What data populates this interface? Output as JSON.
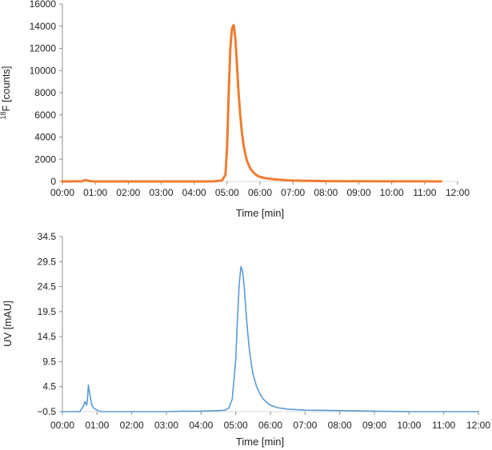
{
  "chart_data": [
    {
      "type": "line",
      "xlabel": "Time [min]",
      "ylabel_sup": "18",
      "ylabel_rest": "F [counts]",
      "ylim": [
        0,
        16000
      ],
      "y_ticks": [
        "0",
        "2000",
        "4000",
        "6000",
        "8000",
        "10000",
        "12000",
        "14000",
        "16000"
      ],
      "x_ticks": [
        "00:00",
        "01:00",
        "02:00",
        "03:00",
        "04:00",
        "05:00",
        "06:00",
        "07:00",
        "08:00",
        "09:00",
        "10:00",
        "11:00",
        "12:00"
      ],
      "xlim_min": [
        0,
        12
      ],
      "color": "#ed7d31",
      "series": [
        {
          "x": [
            0,
            0.6,
            0.7,
            0.8,
            0.9,
            1.0,
            2.0,
            3.0,
            4.0,
            4.6,
            4.85,
            4.95,
            5.0,
            5.05,
            5.1,
            5.15,
            5.2,
            5.25,
            5.3,
            5.35,
            5.4,
            5.45,
            5.5,
            5.55,
            5.6,
            5.7,
            5.8,
            5.9,
            6.0,
            6.2,
            6.4,
            6.6,
            6.8,
            7.0,
            7.5,
            8.0,
            9.0,
            10.0,
            11.0,
            11.5
          ],
          "y": [
            0,
            20,
            120,
            60,
            20,
            0,
            0,
            0,
            0,
            10,
            100,
            600,
            3000,
            8000,
            12000,
            13800,
            14100,
            13000,
            10500,
            8000,
            6000,
            4400,
            3300,
            2500,
            1900,
            1200,
            800,
            550,
            400,
            280,
            200,
            150,
            110,
            80,
            50,
            30,
            15,
            8,
            5,
            0
          ]
        }
      ]
    },
    {
      "type": "line",
      "xlabel": "Time [min]",
      "ylabel": "UV [mAU]",
      "ylim": [
        -0.5,
        34.5
      ],
      "y_ticks": [
        "−0.5",
        "4.5",
        "9.5",
        "14.5",
        "19.5",
        "24.5",
        "29.5",
        "34.5"
      ],
      "x_ticks": [
        "00:00",
        "01:00",
        "02:00",
        "03:00",
        "04:00",
        "05:00",
        "06:00",
        "07:00",
        "08:00",
        "09:00",
        "10:00",
        "11:00",
        "12:00"
      ],
      "xlim_min": [
        0,
        12
      ],
      "color": "#5b9bd5",
      "series": [
        {
          "x": [
            0,
            0.5,
            0.6,
            0.65,
            0.7,
            0.72,
            0.75,
            0.8,
            0.85,
            0.9,
            1.0,
            1.1,
            1.3,
            1.6,
            2.0,
            2.5,
            3.0,
            3.5,
            4.0,
            4.5,
            4.7,
            4.8,
            4.9,
            5.0,
            5.05,
            5.1,
            5.15,
            5.2,
            5.25,
            5.3,
            5.35,
            5.4,
            5.45,
            5.5,
            5.6,
            5.7,
            5.8,
            5.9,
            6.0,
            6.2,
            6.5,
            7.0,
            8.0,
            9.0,
            10.0,
            11.0,
            12.0
          ],
          "y": [
            -0.5,
            -0.5,
            0.5,
            1.5,
            0.8,
            1.8,
            4.8,
            2.5,
            0.8,
            0.2,
            -0.2,
            -0.5,
            -0.5,
            -0.5,
            -0.5,
            -0.5,
            -0.5,
            -0.4,
            -0.4,
            -0.3,
            -0.2,
            0.2,
            2.0,
            10.0,
            18.0,
            25.0,
            28.5,
            27.5,
            24.0,
            19.0,
            15.0,
            11.5,
            9.0,
            7.0,
            4.5,
            3.0,
            2.0,
            1.3,
            0.8,
            0.3,
            0.0,
            -0.2,
            -0.3,
            -0.4,
            -0.5,
            -0.5,
            -0.5
          ]
        }
      ]
    }
  ]
}
